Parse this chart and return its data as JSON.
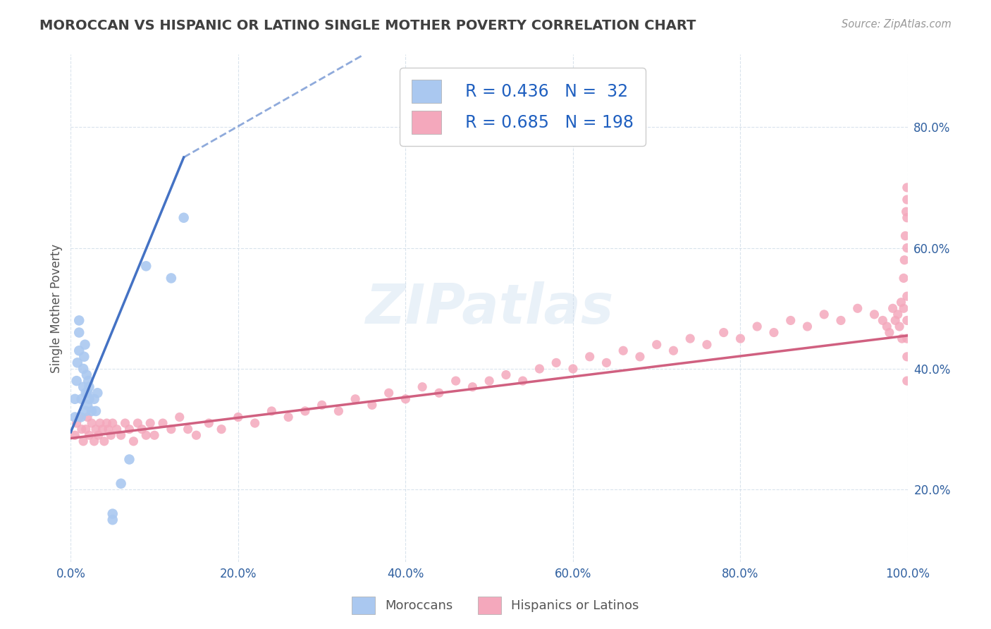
{
  "title": "MOROCCAN VS HISPANIC OR LATINO SINGLE MOTHER POVERTY CORRELATION CHART",
  "source_text": "Source: ZipAtlas.com",
  "ylabel": "Single Mother Poverty",
  "xlim": [
    0.0,
    1.0
  ],
  "ylim": [
    0.08,
    0.92
  ],
  "xtick_labels": [
    "0.0%",
    "20.0%",
    "40.0%",
    "60.0%",
    "80.0%",
    "100.0%"
  ],
  "xtick_vals": [
    0.0,
    0.2,
    0.4,
    0.6,
    0.8,
    1.0
  ],
  "ytick_labels": [
    "20.0%",
    "40.0%",
    "60.0%",
    "80.0%"
  ],
  "ytick_vals": [
    0.2,
    0.4,
    0.6,
    0.8
  ],
  "moroccan_color": "#aac8f0",
  "hispanic_color": "#f4a8bc",
  "trendline_moroccan_color": "#4472c4",
  "trendline_hispanic_color": "#d06080",
  "legend_label_1": "Moroccans",
  "legend_label_2": "Hispanics or Latinos",
  "watermark": "ZIPatlas",
  "background_color": "#ffffff",
  "grid_color": "#d0dce8",
  "title_color": "#404040",
  "legend_text_color": "#2060c0",
  "moroccan_scatter_x": [
    0.005,
    0.005,
    0.007,
    0.008,
    0.01,
    0.01,
    0.01,
    0.012,
    0.013,
    0.015,
    0.015,
    0.016,
    0.017,
    0.018,
    0.018,
    0.019,
    0.02,
    0.02,
    0.021,
    0.022,
    0.022,
    0.025,
    0.028,
    0.03,
    0.032,
    0.05,
    0.06,
    0.07,
    0.09,
    0.12,
    0.135,
    0.05
  ],
  "moroccan_scatter_y": [
    0.32,
    0.35,
    0.38,
    0.41,
    0.43,
    0.46,
    0.48,
    0.32,
    0.35,
    0.37,
    0.4,
    0.42,
    0.44,
    0.33,
    0.36,
    0.39,
    0.34,
    0.36,
    0.38,
    0.35,
    0.37,
    0.33,
    0.35,
    0.33,
    0.36,
    0.16,
    0.21,
    0.25,
    0.57,
    0.55,
    0.65,
    0.15
  ],
  "hispanic_scatter_x": [
    0.005,
    0.007,
    0.01,
    0.013,
    0.015,
    0.018,
    0.02,
    0.022,
    0.025,
    0.028,
    0.03,
    0.033,
    0.035,
    0.038,
    0.04,
    0.043,
    0.045,
    0.048,
    0.05,
    0.055,
    0.06,
    0.065,
    0.07,
    0.075,
    0.08,
    0.085,
    0.09,
    0.095,
    0.1,
    0.11,
    0.12,
    0.13,
    0.14,
    0.15,
    0.165,
    0.18,
    0.2,
    0.22,
    0.24,
    0.26,
    0.28,
    0.3,
    0.32,
    0.34,
    0.36,
    0.38,
    0.4,
    0.42,
    0.44,
    0.46,
    0.48,
    0.5,
    0.52,
    0.54,
    0.56,
    0.58,
    0.6,
    0.62,
    0.64,
    0.66,
    0.68,
    0.7,
    0.72,
    0.74,
    0.76,
    0.78,
    0.8,
    0.82,
    0.84,
    0.86,
    0.88,
    0.9,
    0.92,
    0.94,
    0.96,
    0.97,
    0.975,
    0.978,
    0.982,
    0.985,
    0.988,
    0.99,
    0.992,
    0.993,
    0.995,
    0.995,
    0.996,
    0.997,
    0.998,
    0.999,
    0.999,
    0.999,
    0.999,
    0.999,
    0.999,
    0.999,
    0.999,
    0.999
  ],
  "hispanic_scatter_y": [
    0.29,
    0.31,
    0.32,
    0.3,
    0.28,
    0.3,
    0.32,
    0.29,
    0.31,
    0.28,
    0.3,
    0.29,
    0.31,
    0.3,
    0.28,
    0.31,
    0.3,
    0.29,
    0.31,
    0.3,
    0.29,
    0.31,
    0.3,
    0.28,
    0.31,
    0.3,
    0.29,
    0.31,
    0.29,
    0.31,
    0.3,
    0.32,
    0.3,
    0.29,
    0.31,
    0.3,
    0.32,
    0.31,
    0.33,
    0.32,
    0.33,
    0.34,
    0.33,
    0.35,
    0.34,
    0.36,
    0.35,
    0.37,
    0.36,
    0.38,
    0.37,
    0.38,
    0.39,
    0.38,
    0.4,
    0.41,
    0.4,
    0.42,
    0.41,
    0.43,
    0.42,
    0.44,
    0.43,
    0.45,
    0.44,
    0.46,
    0.45,
    0.47,
    0.46,
    0.48,
    0.47,
    0.49,
    0.48,
    0.5,
    0.49,
    0.48,
    0.47,
    0.46,
    0.5,
    0.48,
    0.49,
    0.47,
    0.51,
    0.45,
    0.5,
    0.55,
    0.58,
    0.62,
    0.66,
    0.7,
    0.68,
    0.65,
    0.6,
    0.45,
    0.42,
    0.48,
    0.52,
    0.38
  ],
  "moroccan_trend_x0": 0.0,
  "moroccan_trend_x1": 0.135,
  "moroccan_trend_y0": 0.295,
  "moroccan_trend_y1": 0.75,
  "moroccan_trend_dash_x1": 0.35,
  "moroccan_trend_dash_y1": 0.92,
  "hispanic_trend_x0": 0.0,
  "hispanic_trend_x1": 1.0,
  "hispanic_trend_y0": 0.285,
  "hispanic_trend_y1": 0.455
}
